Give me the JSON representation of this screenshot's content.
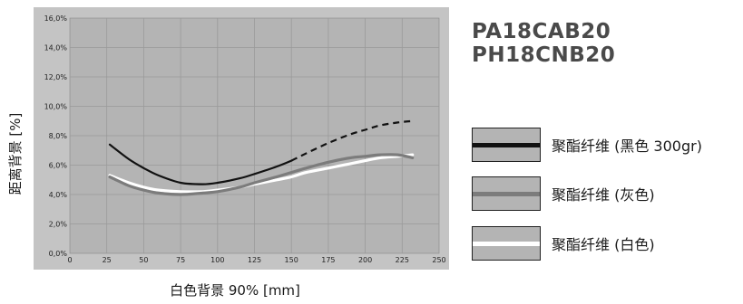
{
  "models": [
    "PA18CAB20",
    "PH18CNB20"
  ],
  "colors": {
    "plot_bg": "#b4b4b4",
    "panel_bg": "#c4c4c4",
    "grid": "#9a9a9a",
    "black_series": "#111111",
    "gray_series": "#7c7c7c",
    "white_series": "#ffffff"
  },
  "chart_data": {
    "type": "line",
    "xlabel": "白色背景 90% [mm]",
    "ylabel": "距离背景 [%]",
    "xlim": [
      0,
      250
    ],
    "ylim": [
      0,
      16
    ],
    "x_ticks": [
      "0",
      "25",
      "50",
      "75",
      "100",
      "125",
      "150",
      "175",
      "200",
      "225",
      "250"
    ],
    "y_ticks": [
      "0,0%",
      "2,0%",
      "4,0%",
      "6,0%",
      "8,0%",
      "10,0%",
      "12,0%",
      "14,0%",
      "16,0%"
    ],
    "grid": true,
    "series": [
      {
        "name": "聚酯纤维 (黑色 300gr)",
        "color": "#111111",
        "dashed_from_x": 150,
        "x": [
          27,
          40,
          50,
          60,
          75,
          90,
          100,
          115,
          125,
          140,
          150,
          160,
          175,
          190,
          200,
          210,
          222,
          232
        ],
        "y": [
          7.4,
          6.4,
          5.8,
          5.3,
          4.8,
          4.7,
          4.8,
          5.1,
          5.4,
          5.9,
          6.3,
          6.8,
          7.5,
          8.1,
          8.4,
          8.7,
          8.9,
          9.0
        ]
      },
      {
        "name": "聚酯纤维 (灰色)",
        "color": "#7c7c7c",
        "x": [
          27,
          40,
          50,
          60,
          75,
          90,
          100,
          115,
          125,
          140,
          150,
          160,
          175,
          190,
          200,
          210,
          222,
          232
        ],
        "y": [
          5.2,
          4.6,
          4.3,
          4.1,
          4.0,
          4.1,
          4.2,
          4.5,
          4.8,
          5.2,
          5.5,
          5.8,
          6.2,
          6.5,
          6.6,
          6.7,
          6.7,
          6.5
        ]
      },
      {
        "name": "聚酯纤维 (白色)",
        "color": "#ffffff",
        "x": [
          27,
          40,
          50,
          60,
          75,
          90,
          100,
          115,
          125,
          140,
          150,
          160,
          175,
          190,
          200,
          210,
          222,
          232
        ],
        "y": [
          5.3,
          4.8,
          4.5,
          4.3,
          4.2,
          4.2,
          4.3,
          4.5,
          4.7,
          5.0,
          5.2,
          5.5,
          5.8,
          6.1,
          6.3,
          6.5,
          6.6,
          6.7
        ]
      }
    ]
  }
}
